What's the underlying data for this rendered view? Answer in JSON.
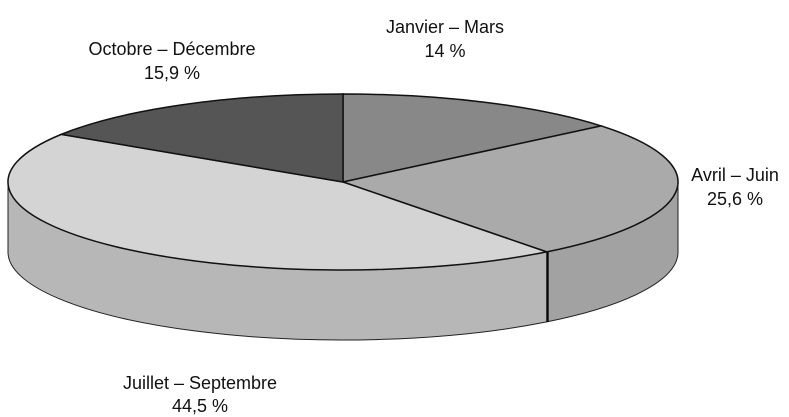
{
  "chart_data": {
    "type": "pie3d",
    "categories": [
      "Janvier – Mars",
      "Avril – Juin",
      "Juillet – Septembre",
      "Octobre – Décembre"
    ],
    "values": [
      14,
      25.6,
      44.5,
      15.9
    ],
    "value_labels": [
      "14 %",
      "25,6 %",
      "44,5 %",
      "15,9 %"
    ],
    "colors": [
      "#888888",
      "#aaaaaa",
      "#d4d4d4",
      "#555555"
    ]
  }
}
